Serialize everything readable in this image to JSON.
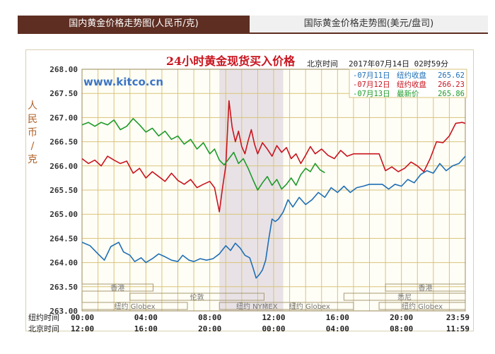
{
  "tabs": [
    {
      "label": "国内黄金价格走势图(人民币/克)"
    },
    {
      "label": "国际黄金价格走势图(美元/盘司)"
    }
  ],
  "chart_data": {
    "type": "line",
    "title": "24小时黄金现货买入价格",
    "timestamp_label": "北京时间",
    "timestamp": "2017年07月14日 02时59分",
    "watermark": "www.kitco.cn",
    "ylabel": "人民币/克",
    "ylim": [
      263.0,
      268.0
    ],
    "yticks": [
      "268.00",
      "267.50",
      "267.00",
      "266.50",
      "266.00",
      "265.50",
      "265.00",
      "264.50",
      "264.00",
      "263.50",
      "263.00"
    ],
    "x_hours": [
      0,
      24
    ],
    "x_rows": [
      {
        "label": "纽约时间",
        "ticks": [
          "00:00",
          "04:00",
          "08:00",
          "12:00",
          "16:00",
          "20:00",
          "23:59"
        ]
      },
      {
        "label": "北京时间",
        "ticks": [
          "12:00",
          "16:00",
          "20:00",
          "00:00",
          "04:00",
          "08:00",
          "11:59"
        ]
      }
    ],
    "highlight_hours": [
      8.6,
      12.6
    ],
    "markets": [
      {
        "label": "香港",
        "h0": 0,
        "h1": 4.45,
        "row": 0
      },
      {
        "label": "伦敦",
        "h0": 3.0,
        "h1": 11.4,
        "row": 1
      },
      {
        "label": "纽约 Globex",
        "h0": 0,
        "h1": 6.6,
        "row": 2
      },
      {
        "label": "纽约 NYMEX",
        "h0": 8.6,
        "h1": 13.3,
        "row": 2
      },
      {
        "label": "纽约 Globex",
        "h0": 11.5,
        "h1": 17.0,
        "row": 2
      },
      {
        "label": "香港",
        "h0": 19.0,
        "h1": 24,
        "row": 0
      },
      {
        "label": "悉尼",
        "h0": 16.4,
        "h1": 24,
        "row": 1
      },
      {
        "label": "纽约 Globex",
        "h0": 18.6,
        "h1": 24,
        "row": 2
      }
    ],
    "legend": [
      {
        "date": "07月11日",
        "kind": "纽约收盘",
        "value": "265.62",
        "color": "#1f6fb5"
      },
      {
        "date": "07月12日",
        "kind": "纽约收盘",
        "value": "266.23",
        "color": "#c8141e"
      },
      {
        "date": "07月13日",
        "kind": "最新价",
        "value": "265.86",
        "color": "#1e9a2a"
      }
    ],
    "series": [
      {
        "name": "07月11日",
        "color": "#1f6fb5",
        "x": [
          0,
          0.5,
          1.0,
          1.4,
          1.8,
          2.3,
          2.6,
          3.0,
          3.3,
          3.7,
          4.0,
          4.4,
          4.8,
          5.2,
          5.6,
          6.0,
          6.3,
          6.7,
          7.0,
          7.4,
          7.8,
          8.2,
          8.6,
          9.0,
          9.3,
          9.6,
          9.9,
          10.2,
          10.5,
          10.7,
          10.9,
          11.1,
          11.3,
          11.5,
          11.7,
          11.9,
          12.1,
          12.3,
          12.6,
          12.9,
          13.2,
          13.6,
          14.0,
          14.4,
          14.8,
          15.2,
          15.6,
          16.0,
          16.4,
          16.8,
          17.2,
          17.6,
          18.0,
          18.4,
          18.8,
          19.2,
          19.6,
          20.0,
          20.4,
          20.8,
          21.2,
          21.6,
          22.0,
          22.4,
          22.8,
          23.2,
          23.6,
          24.0
        ],
        "y": [
          264.42,
          264.35,
          264.18,
          264.05,
          264.33,
          264.42,
          264.22,
          264.15,
          264.02,
          264.1,
          264.0,
          264.08,
          264.18,
          264.12,
          264.05,
          264.02,
          264.15,
          264.05,
          264.02,
          264.08,
          264.05,
          264.08,
          264.18,
          264.35,
          264.25,
          264.4,
          264.3,
          264.15,
          264.1,
          263.9,
          263.68,
          263.75,
          263.85,
          264.05,
          264.5,
          264.9,
          264.85,
          264.9,
          265.05,
          265.3,
          265.15,
          265.35,
          265.2,
          265.3,
          265.45,
          265.35,
          265.55,
          265.45,
          265.58,
          265.45,
          265.55,
          265.58,
          265.62,
          265.62,
          265.62,
          265.52,
          265.62,
          265.58,
          265.72,
          265.65,
          265.82,
          265.9,
          265.85,
          266.05,
          265.9,
          266.0,
          266.05,
          266.2
        ]
      },
      {
        "name": "07月12日",
        "color": "#c8141e",
        "x": [
          0,
          0.4,
          0.8,
          1.2,
          1.6,
          2.0,
          2.4,
          2.8,
          3.2,
          3.6,
          4.0,
          4.4,
          4.8,
          5.2,
          5.6,
          6.0,
          6.4,
          6.8,
          7.2,
          7.6,
          8.0,
          8.3,
          8.6,
          8.8,
          9.0,
          9.2,
          9.4,
          9.6,
          9.8,
          10.0,
          10.2,
          10.4,
          10.6,
          10.8,
          11.0,
          11.3,
          11.6,
          11.9,
          12.2,
          12.5,
          12.8,
          13.1,
          13.4,
          13.7,
          14.0,
          14.3,
          14.6,
          15.0,
          15.4,
          15.8,
          16.2,
          16.6,
          17.0,
          17.4,
          17.8,
          18.2,
          18.6,
          19.0,
          19.4,
          19.8,
          20.2,
          20.6,
          21.0,
          21.4,
          21.8,
          22.2,
          22.6,
          23.0,
          23.4,
          23.8,
          24.0
        ],
        "y": [
          266.15,
          266.05,
          266.12,
          266.0,
          266.2,
          266.12,
          266.05,
          266.1,
          265.85,
          265.95,
          265.75,
          265.88,
          265.78,
          265.68,
          265.85,
          265.7,
          265.62,
          265.72,
          265.55,
          265.62,
          265.68,
          265.55,
          265.05,
          265.55,
          266.0,
          267.35,
          266.8,
          266.5,
          266.72,
          266.4,
          266.25,
          266.52,
          266.75,
          266.45,
          266.25,
          266.48,
          266.35,
          266.2,
          266.42,
          266.28,
          266.38,
          266.15,
          266.25,
          266.05,
          266.22,
          266.4,
          266.25,
          266.35,
          266.22,
          266.15,
          266.32,
          266.2,
          266.25,
          266.25,
          266.25,
          266.25,
          266.25,
          265.9,
          265.98,
          265.88,
          265.95,
          266.08,
          266.0,
          265.88,
          266.15,
          266.5,
          266.48,
          266.62,
          266.88,
          266.9,
          266.88
        ]
      },
      {
        "name": "07月13日",
        "color": "#1e9a2a",
        "x": [
          0,
          0.4,
          0.8,
          1.2,
          1.6,
          2.0,
          2.4,
          2.8,
          3.2,
          3.6,
          4.0,
          4.4,
          4.8,
          5.2,
          5.6,
          6.0,
          6.4,
          6.8,
          7.2,
          7.6,
          8.0,
          8.3,
          8.6,
          8.9,
          9.2,
          9.5,
          9.8,
          10.1,
          10.4,
          10.7,
          11.0,
          11.3,
          11.6,
          11.9,
          12.2,
          12.5,
          12.8,
          13.1,
          13.4,
          13.7,
          14.0,
          14.3,
          14.6,
          14.9,
          15.2
        ],
        "y": [
          266.85,
          266.9,
          266.82,
          266.9,
          266.85,
          266.95,
          266.75,
          266.82,
          266.98,
          266.85,
          266.7,
          266.78,
          266.62,
          266.72,
          266.55,
          266.62,
          266.45,
          266.55,
          266.35,
          266.48,
          266.25,
          266.35,
          266.12,
          266.02,
          266.15,
          266.28,
          266.05,
          266.15,
          265.95,
          265.72,
          265.5,
          265.65,
          265.78,
          265.6,
          265.72,
          265.52,
          265.62,
          265.75,
          265.6,
          265.82,
          265.95,
          265.88,
          266.05,
          265.92,
          265.86
        ]
      }
    ]
  }
}
